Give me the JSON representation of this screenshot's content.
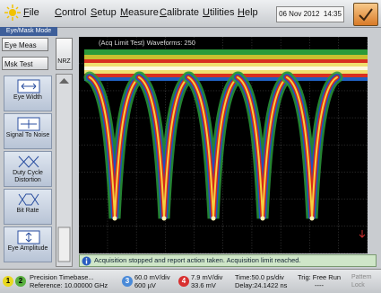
{
  "menu": {
    "items": [
      "File",
      "Control",
      "Setup",
      "Measure",
      "Calibrate",
      "Utilities",
      "Help"
    ],
    "date": "06 Nov 2012",
    "time": "14:35"
  },
  "mode_tab": "Eye/Mask Mode",
  "left_panel": {
    "buttons": [
      "Eye Meas",
      "Msk Test"
    ],
    "nrz": "NRZ",
    "tools": [
      "Eye Width",
      "Signal To Noise",
      "Duty Cycle Distortion",
      "Bit Rate",
      "Eye Amplitude"
    ]
  },
  "display": {
    "header": "(Acq Limit Test)  Waveforms: 250"
  },
  "status": {
    "message": "Acquisition stopped and report action taken.  Acquisition limit reached."
  },
  "bottom_bar": {
    "channels": [
      "1",
      "2"
    ],
    "timebase": {
      "title": "Precision Timebase...",
      "reference": "Reference: 10.00000 GHz"
    },
    "ch3": {
      "number": "3",
      "scale": "60.0 mV/div",
      "offset": "600 µV"
    },
    "ch4": {
      "number": "4",
      "scale": "7.9 mV/div",
      "offset": "33.6 mV"
    },
    "time": {
      "scale": "Time:50.0 ps/div",
      "delay": "Delay:24.1422 ns"
    },
    "trigger": {
      "mode": "Trig: Free Run",
      "detail": "----"
    },
    "pattern": "Pattern Lock"
  }
}
